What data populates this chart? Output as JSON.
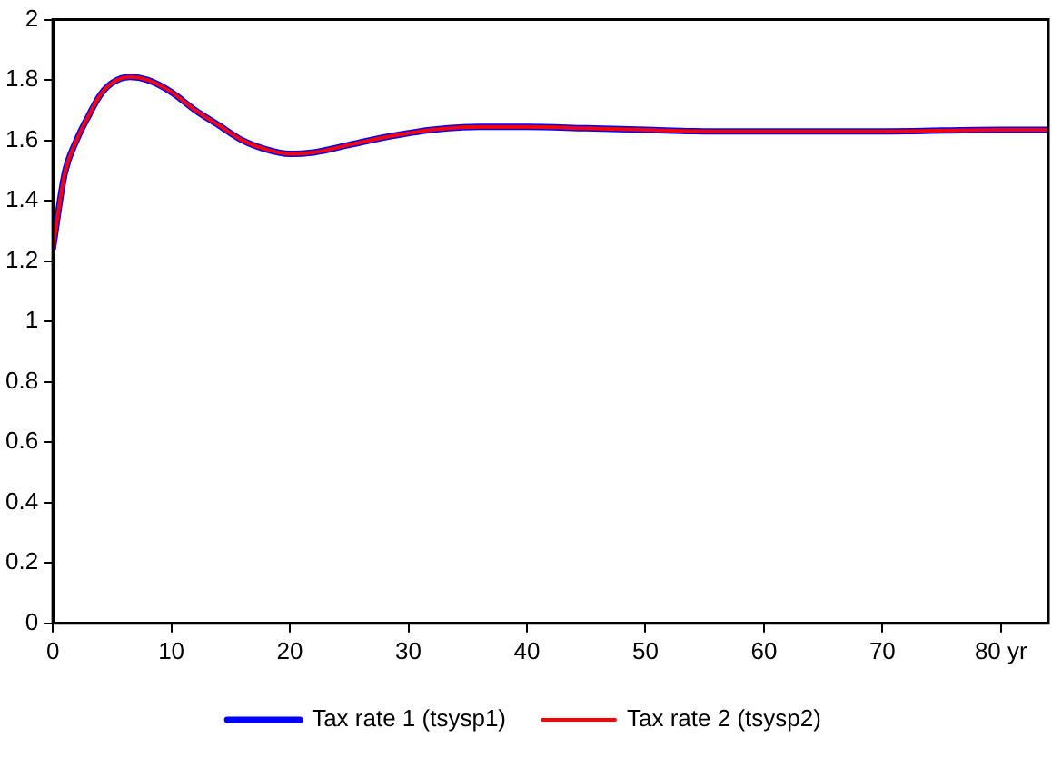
{
  "chart_data": {
    "type": "line",
    "x": [
      0,
      1,
      2,
      3,
      4,
      5,
      6.5,
      8,
      10,
      12,
      14,
      16,
      18,
      20,
      22,
      25,
      28,
      32,
      36,
      40,
      45,
      50,
      55,
      60,
      70,
      80,
      84
    ],
    "series": [
      {
        "name": "Tax rate 1 (tsysp1)",
        "color": "#0000ff",
        "values": [
          1.24,
          1.49,
          1.6,
          1.68,
          1.75,
          1.79,
          1.81,
          1.8,
          1.76,
          1.7,
          1.65,
          1.6,
          1.57,
          1.555,
          1.56,
          1.585,
          1.61,
          1.635,
          1.645,
          1.645,
          1.64,
          1.635,
          1.63,
          1.63,
          1.63,
          1.635,
          1.635
        ]
      },
      {
        "name": "Tax rate 2 (tsysp2)",
        "color": "#ff0000",
        "values": [
          1.24,
          1.49,
          1.6,
          1.68,
          1.75,
          1.79,
          1.81,
          1.8,
          1.76,
          1.7,
          1.65,
          1.6,
          1.57,
          1.555,
          1.56,
          1.585,
          1.61,
          1.635,
          1.645,
          1.645,
          1.64,
          1.635,
          1.63,
          1.63,
          1.63,
          1.635,
          1.635
        ]
      }
    ],
    "xlim": [
      0,
      84
    ],
    "xticks": [
      0,
      10,
      20,
      30,
      40,
      50,
      60,
      70,
      {
        "value": 80,
        "label": "80 yr"
      }
    ],
    "ylim": [
      0,
      2
    ],
    "yticks": [
      0,
      0.2,
      0.4,
      0.6,
      0.8,
      1,
      1.2,
      1.4,
      1.6,
      1.8,
      2
    ],
    "grid": false,
    "legend": "bottom",
    "marker": "none",
    "line_style": "solid"
  }
}
